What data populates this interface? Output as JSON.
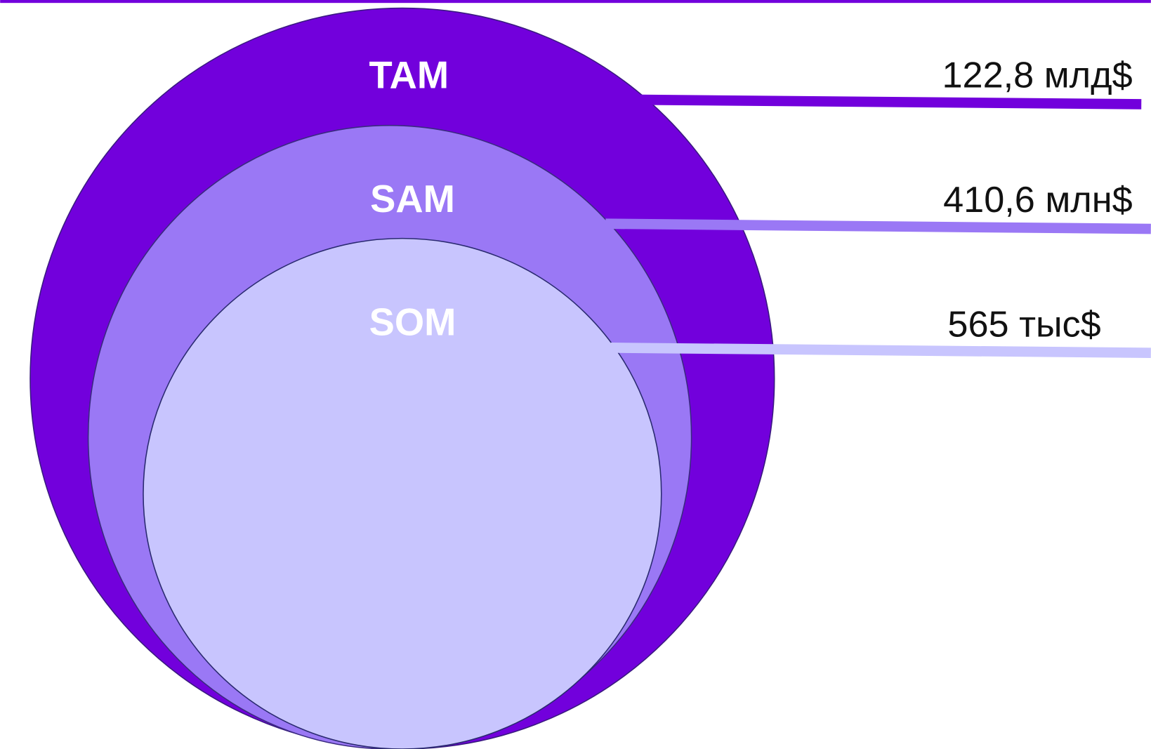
{
  "markets": [
    {
      "label": "TAM",
      "value": "122,8 млд$"
    },
    {
      "label": "SAM",
      "value": "410,6 млн$"
    },
    {
      "label": "SOM",
      "value": "565 тыс$"
    }
  ]
}
